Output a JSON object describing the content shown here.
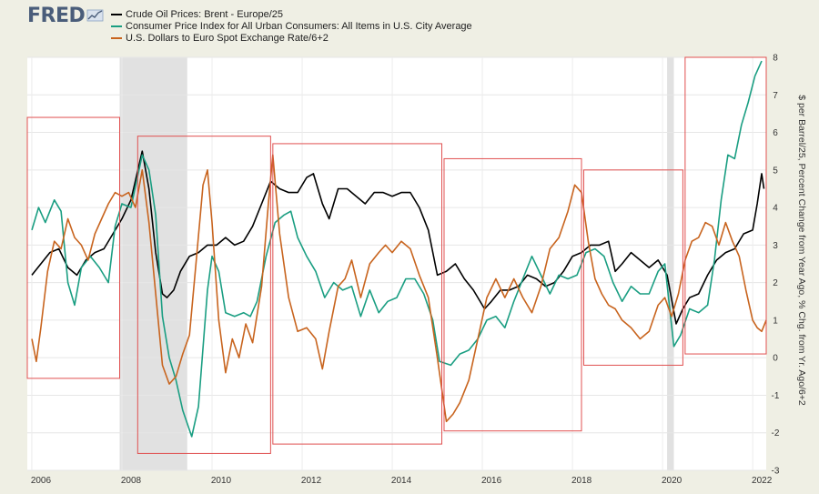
{
  "header": {
    "logo_text": "FRED"
  },
  "chart_data": {
    "type": "line",
    "title": "",
    "xlabel": "",
    "ylabel": "$ per Barrel/25, Percent Change from Year Ago, % Chg. from Yr. Ago/6+2",
    "xlim": [
      2005.9,
      2022.3
    ],
    "ylim": [
      -3,
      8
    ],
    "x_ticks": [
      "2006",
      "2008",
      "2010",
      "2012",
      "2014",
      "2016",
      "2018",
      "2020",
      "2022"
    ],
    "y_ticks": [
      "-3",
      "-2",
      "-1",
      "0",
      "1",
      "2",
      "3",
      "4",
      "5",
      "6",
      "7",
      "8"
    ],
    "grid": true,
    "legend_position": "top-left",
    "recessions": [
      [
        2007.95,
        2009.45
      ],
      [
        2020.1,
        2020.25
      ]
    ],
    "annotation_boxes": [
      {
        "x0": 2005.9,
        "x1": 2007.95,
        "y0": -0.55,
        "y1": 6.4
      },
      {
        "x0": 2008.35,
        "x1": 2011.3,
        "y0": -2.55,
        "y1": 5.9
      },
      {
        "x0": 2011.35,
        "x1": 2015.1,
        "y0": -2.3,
        "y1": 5.7
      },
      {
        "x0": 2015.15,
        "x1": 2018.2,
        "y0": -1.95,
        "y1": 5.3
      },
      {
        "x0": 2018.25,
        "x1": 2020.45,
        "y0": -0.2,
        "y1": 5.0
      },
      {
        "x0": 2020.5,
        "x1": 2022.3,
        "y0": 0.1,
        "y1": 8.0
      }
    ],
    "series": [
      {
        "name": "Crude Oil Prices: Brent - Europe/25",
        "color": "#000000",
        "points": [
          [
            2006.0,
            2.2
          ],
          [
            2006.2,
            2.5
          ],
          [
            2006.4,
            2.8
          ],
          [
            2006.6,
            2.9
          ],
          [
            2006.8,
            2.4
          ],
          [
            2007.0,
            2.2
          ],
          [
            2007.2,
            2.6
          ],
          [
            2007.4,
            2.8
          ],
          [
            2007.6,
            2.9
          ],
          [
            2007.8,
            3.3
          ],
          [
            2008.0,
            3.7
          ],
          [
            2008.2,
            4.2
          ],
          [
            2008.45,
            5.5
          ],
          [
            2008.6,
            4.5
          ],
          [
            2008.75,
            2.8
          ],
          [
            2008.9,
            1.7
          ],
          [
            2009.0,
            1.6
          ],
          [
            2009.15,
            1.8
          ],
          [
            2009.3,
            2.3
          ],
          [
            2009.5,
            2.7
          ],
          [
            2009.7,
            2.8
          ],
          [
            2009.9,
            3.0
          ],
          [
            2010.1,
            3.0
          ],
          [
            2010.3,
            3.2
          ],
          [
            2010.5,
            3.0
          ],
          [
            2010.7,
            3.1
          ],
          [
            2010.9,
            3.5
          ],
          [
            2011.1,
            4.1
          ],
          [
            2011.3,
            4.7
          ],
          [
            2011.5,
            4.5
          ],
          [
            2011.7,
            4.4
          ],
          [
            2011.9,
            4.4
          ],
          [
            2012.1,
            4.8
          ],
          [
            2012.25,
            4.9
          ],
          [
            2012.45,
            4.1
          ],
          [
            2012.6,
            3.7
          ],
          [
            2012.8,
            4.5
          ],
          [
            2013.0,
            4.5
          ],
          [
            2013.2,
            4.3
          ],
          [
            2013.4,
            4.1
          ],
          [
            2013.6,
            4.4
          ],
          [
            2013.8,
            4.4
          ],
          [
            2014.0,
            4.3
          ],
          [
            2014.2,
            4.4
          ],
          [
            2014.4,
            4.4
          ],
          [
            2014.6,
            4.0
          ],
          [
            2014.8,
            3.4
          ],
          [
            2015.0,
            2.2
          ],
          [
            2015.2,
            2.3
          ],
          [
            2015.4,
            2.5
          ],
          [
            2015.6,
            2.1
          ],
          [
            2015.8,
            1.8
          ],
          [
            2016.05,
            1.3
          ],
          [
            2016.2,
            1.5
          ],
          [
            2016.4,
            1.8
          ],
          [
            2016.6,
            1.8
          ],
          [
            2016.8,
            1.9
          ],
          [
            2017.0,
            2.2
          ],
          [
            2017.2,
            2.1
          ],
          [
            2017.4,
            1.9
          ],
          [
            2017.6,
            2.0
          ],
          [
            2017.8,
            2.3
          ],
          [
            2018.0,
            2.7
          ],
          [
            2018.2,
            2.8
          ],
          [
            2018.4,
            3.0
          ],
          [
            2018.6,
            3.0
          ],
          [
            2018.8,
            3.1
          ],
          [
            2018.95,
            2.3
          ],
          [
            2019.1,
            2.5
          ],
          [
            2019.3,
            2.8
          ],
          [
            2019.5,
            2.6
          ],
          [
            2019.7,
            2.4
          ],
          [
            2019.9,
            2.6
          ],
          [
            2020.1,
            2.2
          ],
          [
            2020.3,
            0.9
          ],
          [
            2020.45,
            1.3
          ],
          [
            2020.6,
            1.6
          ],
          [
            2020.8,
            1.7
          ],
          [
            2021.0,
            2.2
          ],
          [
            2021.2,
            2.6
          ],
          [
            2021.4,
            2.8
          ],
          [
            2021.6,
            2.9
          ],
          [
            2021.8,
            3.3
          ],
          [
            2022.0,
            3.4
          ],
          [
            2022.1,
            4.1
          ],
          [
            2022.2,
            4.9
          ],
          [
            2022.25,
            4.5
          ]
        ]
      },
      {
        "name": "Consumer Price Index for All Urban Consumers: All Items in U.S. City Average",
        "color": "#1a9e82",
        "points": [
          [
            2006.0,
            3.4
          ],
          [
            2006.15,
            4.0
          ],
          [
            2006.3,
            3.6
          ],
          [
            2006.5,
            4.2
          ],
          [
            2006.65,
            3.9
          ],
          [
            2006.8,
            2.0
          ],
          [
            2006.95,
            1.4
          ],
          [
            2007.1,
            2.4
          ],
          [
            2007.3,
            2.7
          ],
          [
            2007.5,
            2.4
          ],
          [
            2007.7,
            2.0
          ],
          [
            2007.85,
            3.5
          ],
          [
            2008.0,
            4.1
          ],
          [
            2008.2,
            4.0
          ],
          [
            2008.45,
            5.4
          ],
          [
            2008.6,
            5.0
          ],
          [
            2008.75,
            3.8
          ],
          [
            2008.9,
            1.1
          ],
          [
            2009.05,
            0.0
          ],
          [
            2009.2,
            -0.6
          ],
          [
            2009.35,
            -1.4
          ],
          [
            2009.55,
            -2.1
          ],
          [
            2009.7,
            -1.3
          ],
          [
            2009.9,
            1.8
          ],
          [
            2010.0,
            2.7
          ],
          [
            2010.15,
            2.3
          ],
          [
            2010.3,
            1.2
          ],
          [
            2010.5,
            1.1
          ],
          [
            2010.7,
            1.2
          ],
          [
            2010.85,
            1.1
          ],
          [
            2011.0,
            1.5
          ],
          [
            2011.2,
            2.7
          ],
          [
            2011.4,
            3.6
          ],
          [
            2011.6,
            3.8
          ],
          [
            2011.75,
            3.9
          ],
          [
            2011.9,
            3.2
          ],
          [
            2012.1,
            2.7
          ],
          [
            2012.3,
            2.3
          ],
          [
            2012.5,
            1.6
          ],
          [
            2012.7,
            2.0
          ],
          [
            2012.9,
            1.8
          ],
          [
            2013.1,
            1.9
          ],
          [
            2013.3,
            1.1
          ],
          [
            2013.5,
            1.8
          ],
          [
            2013.7,
            1.2
          ],
          [
            2013.9,
            1.5
          ],
          [
            2014.1,
            1.6
          ],
          [
            2014.3,
            2.1
          ],
          [
            2014.5,
            2.1
          ],
          [
            2014.7,
            1.7
          ],
          [
            2014.9,
            1.0
          ],
          [
            2015.05,
            -0.1
          ],
          [
            2015.3,
            -0.2
          ],
          [
            2015.5,
            0.1
          ],
          [
            2015.7,
            0.2
          ],
          [
            2015.9,
            0.5
          ],
          [
            2016.1,
            1.0
          ],
          [
            2016.3,
            1.1
          ],
          [
            2016.5,
            0.8
          ],
          [
            2016.7,
            1.5
          ],
          [
            2016.9,
            2.1
          ],
          [
            2017.1,
            2.7
          ],
          [
            2017.3,
            2.2
          ],
          [
            2017.5,
            1.7
          ],
          [
            2017.7,
            2.2
          ],
          [
            2017.9,
            2.1
          ],
          [
            2018.1,
            2.2
          ],
          [
            2018.3,
            2.8
          ],
          [
            2018.5,
            2.9
          ],
          [
            2018.7,
            2.7
          ],
          [
            2018.9,
            2.0
          ],
          [
            2019.1,
            1.5
          ],
          [
            2019.3,
            1.9
          ],
          [
            2019.5,
            1.7
          ],
          [
            2019.7,
            1.7
          ],
          [
            2019.9,
            2.3
          ],
          [
            2020.05,
            2.5
          ],
          [
            2020.25,
            0.3
          ],
          [
            2020.4,
            0.6
          ],
          [
            2020.6,
            1.3
          ],
          [
            2020.8,
            1.2
          ],
          [
            2021.0,
            1.4
          ],
          [
            2021.15,
            2.6
          ],
          [
            2021.3,
            4.2
          ],
          [
            2021.45,
            5.4
          ],
          [
            2021.6,
            5.3
          ],
          [
            2021.75,
            6.2
          ],
          [
            2021.9,
            6.8
          ],
          [
            2022.05,
            7.5
          ],
          [
            2022.2,
            7.9
          ]
        ]
      },
      {
        "name": "U.S. Dollars to Euro Spot Exchange Rate/6+2",
        "color": "#c8641e",
        "points": [
          [
            2006.0,
            0.5
          ],
          [
            2006.1,
            -0.1
          ],
          [
            2006.2,
            0.8
          ],
          [
            2006.35,
            2.3
          ],
          [
            2006.5,
            3.1
          ],
          [
            2006.65,
            2.9
          ],
          [
            2006.8,
            3.7
          ],
          [
            2006.95,
            3.2
          ],
          [
            2007.1,
            3.0
          ],
          [
            2007.25,
            2.6
          ],
          [
            2007.4,
            3.3
          ],
          [
            2007.55,
            3.7
          ],
          [
            2007.7,
            4.1
          ],
          [
            2007.85,
            4.4
          ],
          [
            2008.0,
            4.3
          ],
          [
            2008.15,
            4.4
          ],
          [
            2008.3,
            4.0
          ],
          [
            2008.45,
            5.0
          ],
          [
            2008.6,
            3.6
          ],
          [
            2008.75,
            1.7
          ],
          [
            2008.9,
            -0.2
          ],
          [
            2009.05,
            -0.7
          ],
          [
            2009.2,
            -0.5
          ],
          [
            2009.35,
            0.1
          ],
          [
            2009.5,
            0.6
          ],
          [
            2009.65,
            2.6
          ],
          [
            2009.8,
            4.6
          ],
          [
            2009.9,
            5.0
          ],
          [
            2010.0,
            3.6
          ],
          [
            2010.15,
            1.0
          ],
          [
            2010.3,
            -0.4
          ],
          [
            2010.45,
            0.5
          ],
          [
            2010.6,
            0.0
          ],
          [
            2010.75,
            0.9
          ],
          [
            2010.9,
            0.4
          ],
          [
            2011.1,
            1.9
          ],
          [
            2011.25,
            4.1
          ],
          [
            2011.35,
            5.4
          ],
          [
            2011.5,
            3.3
          ],
          [
            2011.7,
            1.6
          ],
          [
            2011.9,
            0.7
          ],
          [
            2012.1,
            0.8
          ],
          [
            2012.3,
            0.5
          ],
          [
            2012.45,
            -0.3
          ],
          [
            2012.6,
            0.7
          ],
          [
            2012.8,
            1.9
          ],
          [
            2012.95,
            2.1
          ],
          [
            2013.1,
            2.6
          ],
          [
            2013.3,
            1.6
          ],
          [
            2013.5,
            2.5
          ],
          [
            2013.7,
            2.8
          ],
          [
            2013.85,
            3.0
          ],
          [
            2014.0,
            2.8
          ],
          [
            2014.2,
            3.1
          ],
          [
            2014.4,
            2.9
          ],
          [
            2014.6,
            2.2
          ],
          [
            2014.8,
            1.6
          ],
          [
            2015.0,
            0.0
          ],
          [
            2015.2,
            -1.7
          ],
          [
            2015.35,
            -1.5
          ],
          [
            2015.5,
            -1.2
          ],
          [
            2015.7,
            -0.6
          ],
          [
            2015.9,
            0.5
          ],
          [
            2016.1,
            1.6
          ],
          [
            2016.3,
            2.1
          ],
          [
            2016.5,
            1.6
          ],
          [
            2016.7,
            2.1
          ],
          [
            2016.9,
            1.6
          ],
          [
            2017.1,
            1.2
          ],
          [
            2017.3,
            1.9
          ],
          [
            2017.5,
            2.9
          ],
          [
            2017.7,
            3.2
          ],
          [
            2017.9,
            3.9
          ],
          [
            2018.05,
            4.6
          ],
          [
            2018.2,
            4.4
          ],
          [
            2018.35,
            3.1
          ],
          [
            2018.5,
            2.1
          ],
          [
            2018.65,
            1.7
          ],
          [
            2018.8,
            1.4
          ],
          [
            2018.95,
            1.3
          ],
          [
            2019.1,
            1.0
          ],
          [
            2019.3,
            0.8
          ],
          [
            2019.5,
            0.5
          ],
          [
            2019.7,
            0.7
          ],
          [
            2019.9,
            1.4
          ],
          [
            2020.05,
            1.6
          ],
          [
            2020.2,
            1.1
          ],
          [
            2020.35,
            1.7
          ],
          [
            2020.5,
            2.6
          ],
          [
            2020.65,
            3.1
          ],
          [
            2020.8,
            3.2
          ],
          [
            2020.95,
            3.6
          ],
          [
            2021.1,
            3.5
          ],
          [
            2021.25,
            3.0
          ],
          [
            2021.4,
            3.6
          ],
          [
            2021.55,
            3.1
          ],
          [
            2021.7,
            2.7
          ],
          [
            2021.85,
            1.8
          ],
          [
            2022.0,
            1.0
          ],
          [
            2022.1,
            0.8
          ],
          [
            2022.2,
            0.7
          ],
          [
            2022.3,
            1.0
          ]
        ]
      }
    ]
  }
}
